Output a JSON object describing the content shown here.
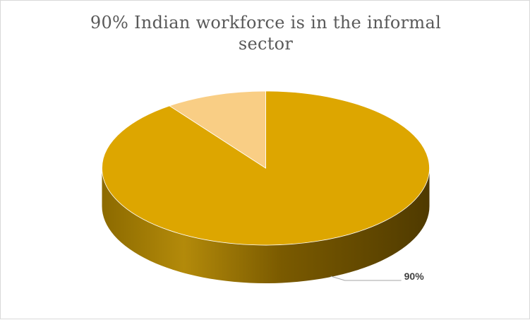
{
  "chart_data": {
    "type": "pie",
    "title": "90% Indian workforce is in the informal sector",
    "categories": [
      "",
      ""
    ],
    "values": [
      90,
      10
    ],
    "data_labels": [
      "90%",
      ""
    ],
    "colors": [
      "#DDA600",
      "#F9CE85"
    ],
    "legend": "none",
    "style": "3d"
  }
}
